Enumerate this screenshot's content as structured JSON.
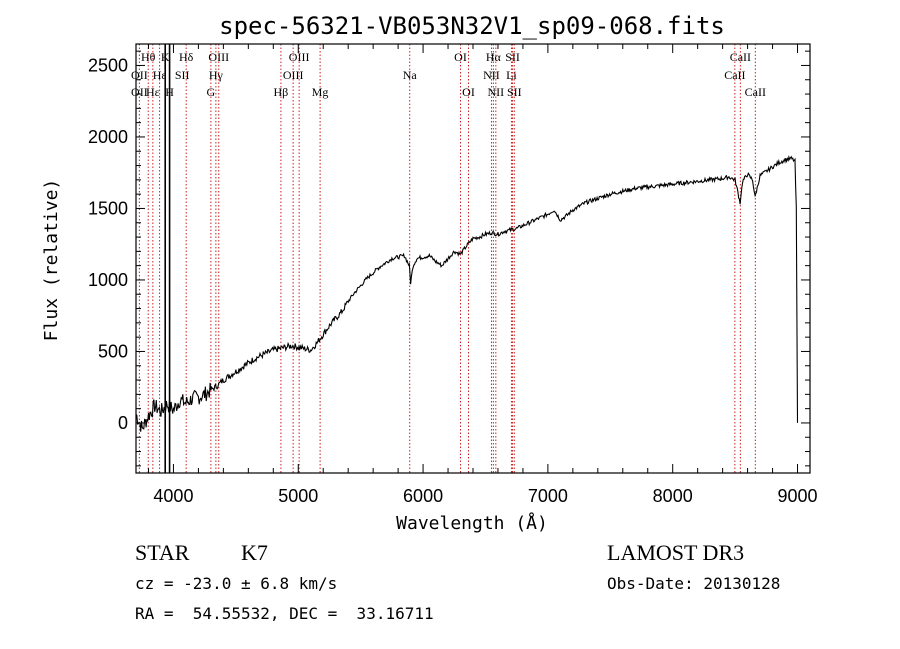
{
  "chart_data": {
    "type": "line",
    "title": "spec-56321-VB053N32V1_sp09-068.fits",
    "xlabel": "Wavelength (Å)",
    "ylabel": "Flux (relative)",
    "xlim": [
      3700,
      9100
    ],
    "ylim": [
      -350,
      2650
    ],
    "x_ticks": [
      4000,
      5000,
      6000,
      7000,
      8000,
      9000
    ],
    "y_ticks": [
      0,
      500,
      1000,
      1500,
      2000,
      2500
    ],
    "series": [
      {
        "name": "flux",
        "x": [
          3700,
          3750,
          3800,
          3850,
          3900,
          3950,
          4000,
          4050,
          4100,
          4150,
          4200,
          4250,
          4300,
          4350,
          4400,
          4450,
          4500,
          4550,
          4600,
          4650,
          4700,
          4750,
          4800,
          4850,
          4900,
          4950,
          5000,
          5050,
          5100,
          5150,
          5200,
          5250,
          5300,
          5350,
          5400,
          5450,
          5500,
          5550,
          5600,
          5650,
          5700,
          5750,
          5800,
          5850,
          5890,
          5900,
          5920,
          5950,
          6000,
          6050,
          6100,
          6150,
          6200,
          6250,
          6300,
          6350,
          6400,
          6450,
          6500,
          6550,
          6600,
          6650,
          6700,
          6750,
          6800,
          6850,
          6900,
          6950,
          7000,
          7050,
          7100,
          7150,
          7200,
          7300,
          7400,
          7500,
          7600,
          7700,
          7800,
          7900,
          8000,
          8100,
          8200,
          8300,
          8400,
          8450,
          8500,
          8540,
          8560,
          8600,
          8640,
          8660,
          8700,
          8750,
          8800,
          8850,
          8900,
          8950,
          8980,
          8990,
          9000
        ],
        "values": [
          60,
          -40,
          50,
          120,
          80,
          130,
          90,
          160,
          140,
          170,
          180,
          200,
          230,
          260,
          300,
          330,
          360,
          390,
          420,
          450,
          470,
          490,
          510,
          520,
          530,
          540,
          530,
          520,
          510,
          560,
          620,
          680,
          730,
          780,
          850,
          910,
          960,
          1010,
          1050,
          1090,
          1120,
          1150,
          1160,
          1170,
          1100,
          980,
          1100,
          1150,
          1160,
          1170,
          1130,
          1100,
          1150,
          1200,
          1180,
          1240,
          1290,
          1300,
          1320,
          1330,
          1320,
          1340,
          1350,
          1360,
          1380,
          1400,
          1420,
          1440,
          1460,
          1490,
          1420,
          1450,
          1490,
          1540,
          1570,
          1600,
          1620,
          1640,
          1650,
          1660,
          1670,
          1680,
          1690,
          1700,
          1710,
          1720,
          1700,
          1540,
          1690,
          1740,
          1700,
          1580,
          1730,
          1760,
          1790,
          1820,
          1840,
          1850,
          1830,
          1500,
          0
        ]
      }
    ],
    "vertical_lines": [
      3727,
      3798,
      3835,
      3889,
      3934,
      3969,
      4102,
      4300,
      4340,
      4363,
      4861,
      4959,
      5007,
      5175,
      5893,
      6300,
      6364,
      6548,
      6563,
      6583,
      6708,
      6717,
      6731,
      8498,
      8542,
      8662
    ],
    "line_labels": [
      {
        "text": "Hθ",
        "x": 3798,
        "row": 0
      },
      {
        "text": "K",
        "x": 3934,
        "row": 0
      },
      {
        "text": "Hδ",
        "x": 4102,
        "row": 0
      },
      {
        "text": "OIII",
        "x": 4363,
        "row": 0
      },
      {
        "text": "OIII",
        "x": 5007,
        "row": 0
      },
      {
        "text": "OI",
        "x": 6300,
        "row": 0
      },
      {
        "text": "Hα",
        "x": 6563,
        "row": 0
      },
      {
        "text": "SII",
        "x": 6717,
        "row": 0
      },
      {
        "text": "CaII",
        "x": 8542,
        "row": 0
      },
      {
        "text": "OII",
        "x": 3727,
        "row": 1
      },
      {
        "text": "Hε",
        "x": 3889,
        "row": 1
      },
      {
        "text": "SII",
        "x": 4070,
        "row": 1
      },
      {
        "text": "Hγ",
        "x": 4340,
        "row": 1
      },
      {
        "text": "OIII",
        "x": 4959,
        "row": 1
      },
      {
        "text": "Na",
        "x": 5893,
        "row": 1
      },
      {
        "text": "NII",
        "x": 6548,
        "row": 1
      },
      {
        "text": "Li",
        "x": 6708,
        "row": 1
      },
      {
        "text": "CaII",
        "x": 8498,
        "row": 1
      },
      {
        "text": "OII",
        "x": 3727,
        "row": 2
      },
      {
        "text": "Hε",
        "x": 3835,
        "row": 2
      },
      {
        "text": "H",
        "x": 3969,
        "row": 2
      },
      {
        "text": "G",
        "x": 4300,
        "row": 2
      },
      {
        "text": "Hβ",
        "x": 4861,
        "row": 2
      },
      {
        "text": "Mg",
        "x": 5175,
        "row": 2
      },
      {
        "text": "OI",
        "x": 6364,
        "row": 2
      },
      {
        "text": "NII",
        "x": 6583,
        "row": 2
      },
      {
        "text": "SII",
        "x": 6731,
        "row": 2
      },
      {
        "text": "CaII",
        "x": 8662,
        "row": 2
      }
    ],
    "solid_lines": [
      3934,
      3969
    ],
    "line_color": "#cc2222"
  },
  "info": {
    "object_class": "STAR",
    "subclass": "K7",
    "survey": "LAMOST DR3",
    "cz": "cz = -23.0 ± 6.8 km/s",
    "obs_date": "Obs-Date: 20130128",
    "coords": "RA =  54.55532, DEC =  33.16711"
  }
}
